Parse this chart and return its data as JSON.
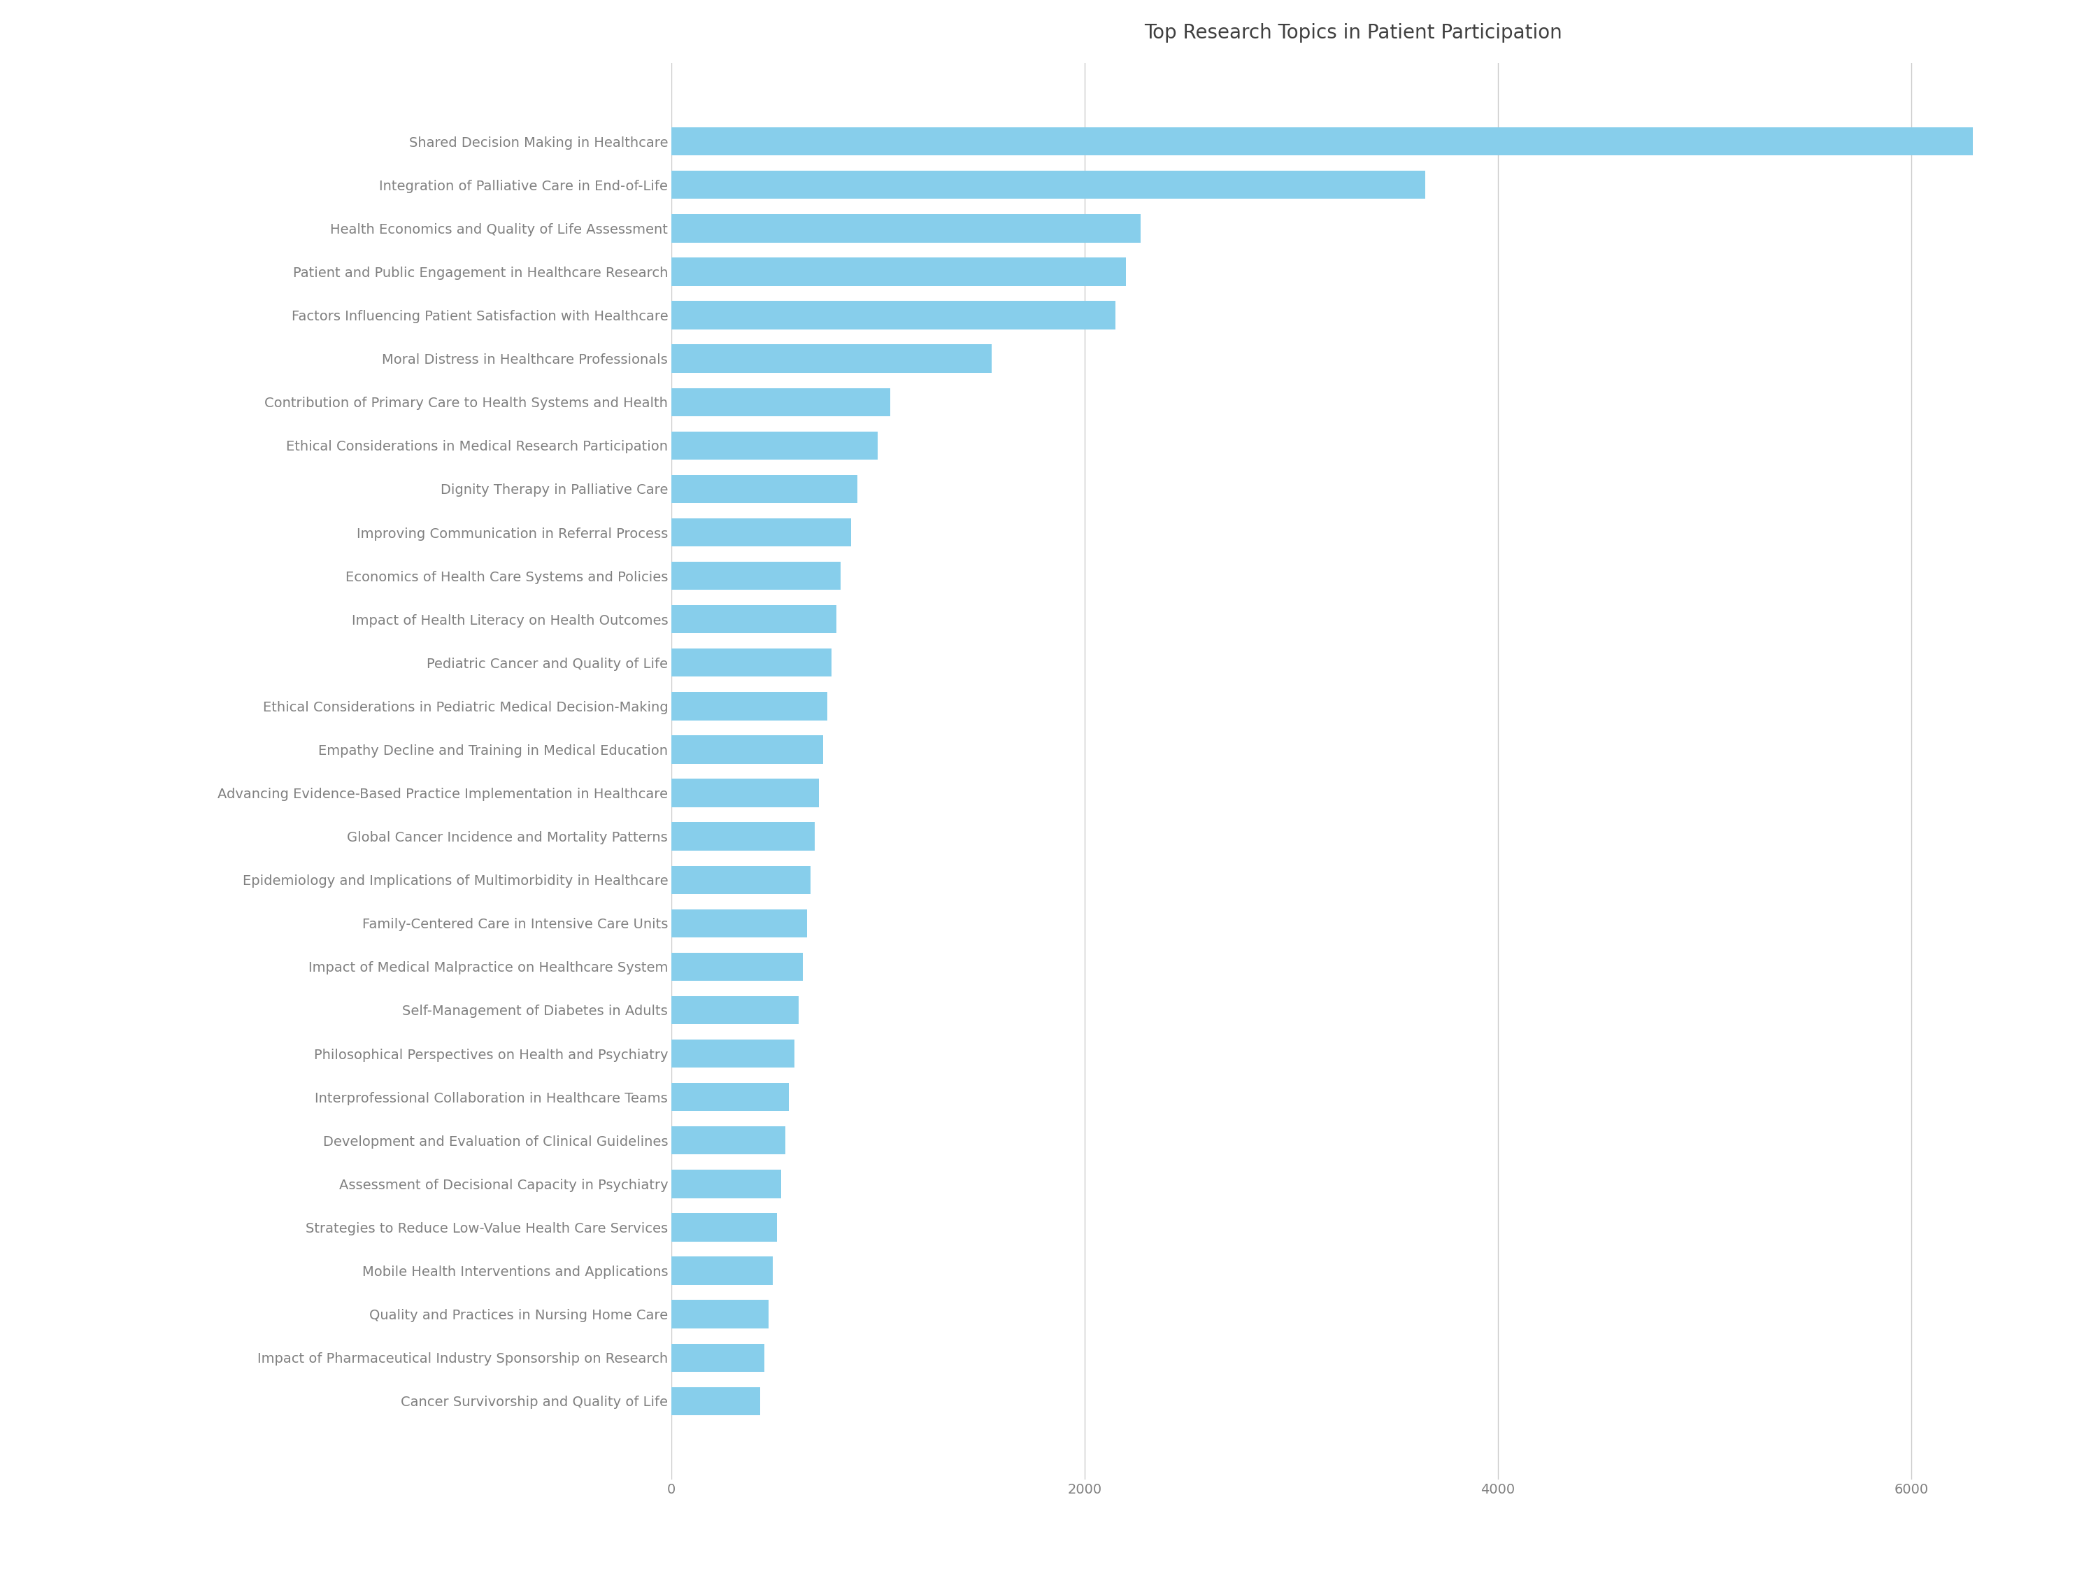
{
  "title": "Top Research Topics in Patient Participation",
  "categories": [
    "Cancer Survivorship and Quality of Life",
    "Impact of Pharmaceutical Industry Sponsorship on Research",
    "Quality and Practices in Nursing Home Care",
    "Mobile Health Interventions and Applications",
    "Strategies to Reduce Low-Value Health Care Services",
    "Assessment of Decisional Capacity in Psychiatry",
    "Development and Evaluation of Clinical Guidelines",
    "Interprofessional Collaboration in Healthcare Teams",
    "Philosophical Perspectives on Health and Psychiatry",
    "Self-Management of Diabetes in Adults",
    "Impact of Medical Malpractice on Healthcare System",
    "Family-Centered Care in Intensive Care Units",
    "Epidemiology and Implications of Multimorbidity in Healthcare",
    "Global Cancer Incidence and Mortality Patterns",
    "Advancing Evidence-Based Practice Implementation in Healthcare",
    "Empathy Decline and Training in Medical Education",
    "Ethical Considerations in Pediatric Medical Decision-Making",
    "Pediatric Cancer and Quality of Life",
    "Impact of Health Literacy on Health Outcomes",
    "Economics of Health Care Systems and Policies",
    "Improving Communication in Referral Process",
    "Dignity Therapy in Palliative Care",
    "Ethical Considerations in Medical Research Participation",
    "Contribution of Primary Care to Health Systems and Health",
    "Moral Distress in Healthcare Professionals",
    "Factors Influencing Patient Satisfaction with Healthcare",
    "Patient and Public Engagement in Healthcare Research",
    "Health Economics and Quality of Life Assessment",
    "Integration of Palliative Care in End-of-Life",
    "Shared Decision Making in Healthcare"
  ],
  "values": [
    430,
    450,
    470,
    490,
    510,
    530,
    550,
    570,
    595,
    615,
    635,
    655,
    675,
    695,
    715,
    735,
    755,
    775,
    800,
    820,
    870,
    900,
    1000,
    1060,
    1550,
    2150,
    2200,
    2270,
    3650,
    6300
  ],
  "bar_color": "#87CEEB",
  "bg_color": "#ffffff",
  "plot_bg_color": "#ffffff",
  "text_color": "#808080",
  "title_color": "#404040",
  "grid_color": "#cccccc",
  "xlim": [
    0,
    6600
  ],
  "xtick_values": [
    0,
    2000,
    4000,
    6000
  ],
  "title_fontsize": 20,
  "label_fontsize": 14,
  "tick_fontsize": 14
}
